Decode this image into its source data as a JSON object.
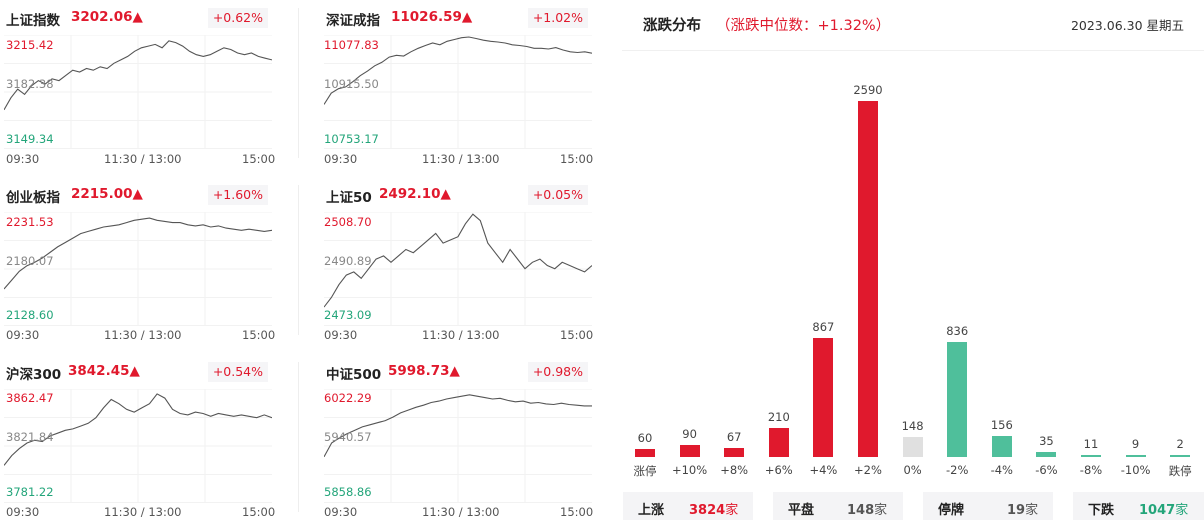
{
  "indices": [
    {
      "name": "上证指数",
      "price": "3202.06▲",
      "pct": "+0.62%",
      "hi": "3215.42",
      "mid": "3182.38",
      "lo": "3149.34",
      "times": {
        "open": "09:30",
        "mid": "11:30 / 13:00",
        "close": "15:00"
      },
      "series": [
        3172,
        3179,
        3184,
        3181,
        3186,
        3189,
        3187,
        3190,
        3189,
        3192,
        3195,
        3194,
        3196,
        3195,
        3197,
        3196,
        3199,
        3201,
        3203,
        3206,
        3208,
        3209,
        3210,
        3208,
        3212,
        3211,
        3209,
        3206,
        3204,
        3203,
        3204,
        3206,
        3208,
        3207,
        3205,
        3204,
        3205,
        3203,
        3202,
        3201
      ]
    },
    {
      "name": "深证成指",
      "price": "11026.59▲",
      "pct": "+1.02%",
      "hi": "11077.83",
      "mid": "10915.50",
      "lo": "10753.17",
      "times": {
        "open": "09:30",
        "mid": "11:30 / 13:00",
        "close": "15:00"
      },
      "series": [
        10880,
        10912,
        10925,
        10930,
        10945,
        10962,
        10975,
        10990,
        11000,
        11015,
        11020,
        11018,
        11030,
        11040,
        11048,
        11055,
        11050,
        11060,
        11065,
        11070,
        11072,
        11068,
        11063,
        11060,
        11058,
        11055,
        11050,
        11048,
        11045,
        11040,
        11040,
        11038,
        11042,
        11035,
        11030,
        11028,
        11030,
        11026
      ]
    },
    {
      "name": "创业板指",
      "price": "2215.00▲",
      "pct": "+1.60%",
      "hi": "2231.53",
      "mid": "2180.07",
      "lo": "2128.60",
      "times": {
        "open": "09:30",
        "mid": "11:30 / 13:00",
        "close": "15:00"
      },
      "series": [
        2162,
        2170,
        2178,
        2183,
        2186,
        2190,
        2195,
        2200,
        2204,
        2208,
        2212,
        2214,
        2216,
        2218,
        2219,
        2220,
        2222,
        2224,
        2225,
        2226,
        2224,
        2223,
        2222,
        2222,
        2220,
        2219,
        2220,
        2218,
        2219,
        2217,
        2216,
        2215,
        2216,
        2215,
        2214,
        2215
      ]
    },
    {
      "name": "上证50",
      "price": "2492.10▲",
      "pct": "+0.05%",
      "hi": "2508.70",
      "mid": "2490.89",
      "lo": "2473.09",
      "times": {
        "open": "09:30",
        "mid": "11:30 / 13:00",
        "close": "15:00"
      },
      "series": [
        2479,
        2482,
        2486,
        2489,
        2490,
        2488,
        2491,
        2494,
        2495,
        2493,
        2495,
        2497,
        2496,
        2498,
        2500,
        2502,
        2499,
        2500,
        2501,
        2505,
        2508,
        2506,
        2499,
        2496,
        2493,
        2497,
        2494,
        2491,
        2493,
        2494,
        2492,
        2491,
        2493,
        2492,
        2491,
        2490,
        2492
      ]
    },
    {
      "name": "沪深300",
      "price": "3842.45▲",
      "pct": "+0.54%",
      "hi": "3862.47",
      "mid": "3821.84",
      "lo": "3781.22",
      "times": {
        "open": "09:30",
        "mid": "11:30 / 13:00",
        "close": "15:00"
      },
      "series": [
        3808,
        3815,
        3820,
        3824,
        3826,
        3825,
        3829,
        3831,
        3833,
        3834,
        3836,
        3838,
        3842,
        3849,
        3855,
        3852,
        3848,
        3846,
        3849,
        3852,
        3859,
        3856,
        3848,
        3845,
        3844,
        3846,
        3845,
        3843,
        3845,
        3844,
        3843,
        3844,
        3843,
        3842,
        3844,
        3842
      ]
    },
    {
      "name": "中证500",
      "price": "5998.73▲",
      "pct": "+0.98%",
      "hi": "6022.29",
      "mid": "5940.57",
      "lo": "5858.86",
      "times": {
        "open": "09:30",
        "mid": "11:30 / 13:00",
        "close": "15:00"
      },
      "series": [
        5925,
        5945,
        5952,
        5958,
        5963,
        5968,
        5971,
        5974,
        5977,
        5982,
        5988,
        5992,
        5996,
        5999,
        6003,
        6005,
        6008,
        6010,
        6012,
        6014,
        6012,
        6010,
        6008,
        6009,
        6006,
        6004,
        6005,
        6002,
        6003,
        6001,
        6000,
        6002,
        6000,
        5999,
        5998,
        5998
      ]
    }
  ],
  "distribution": {
    "title": "涨跌分布",
    "subtitle": "（涨跌中位数：+1.32%）",
    "date": "2023.06.30 星期五",
    "chart_data": {
      "type": "bar",
      "categories": [
        "涨停",
        "+10%",
        "+8%",
        "+6%",
        "+4%",
        "+2%",
        "0%",
        "-2%",
        "-4%",
        "-6%",
        "-8%",
        "-10%",
        "跌停"
      ],
      "values": [
        60,
        90,
        67,
        210,
        867,
        2590,
        148,
        836,
        156,
        35,
        11,
        9,
        2
      ],
      "colors": [
        "#e0192d",
        "#e0192d",
        "#e0192d",
        "#e0192d",
        "#e0192d",
        "#e0192d",
        "#e0e0e0",
        "#4fbf9b",
        "#4fbf9b",
        "#4fbf9b",
        "#4fbf9b",
        "#4fbf9b",
        "#4fbf9b"
      ]
    },
    "summary": [
      {
        "key": "上涨",
        "value": "3824",
        "unit": "家",
        "color": "#e0192d"
      },
      {
        "key": "平盘",
        "value": "148",
        "unit": "家",
        "color": "#555555"
      },
      {
        "key": "停牌",
        "value": "19",
        "unit": "家",
        "color": "#555555"
      },
      {
        "key": "下跌",
        "value": "1047",
        "unit": "家",
        "color": "#23a57a"
      }
    ]
  },
  "colors": {
    "up": "#e0192d",
    "down": "#23a57a",
    "flat": "#e0e0e0",
    "line": "#555555"
  }
}
